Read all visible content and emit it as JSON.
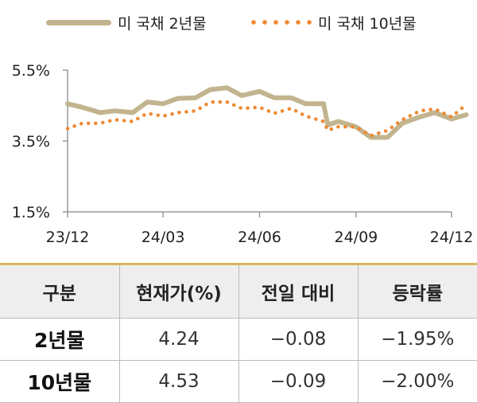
{
  "legend": {
    "items": [
      {
        "label": "미 국채 2년물",
        "style": "solid",
        "color": "#c2b48e"
      },
      {
        "label": "미 국채 10년물",
        "style": "dotted",
        "color": "#ee8a34"
      }
    ]
  },
  "chart_data": {
    "type": "line",
    "xlabel": "",
    "ylabel": "",
    "x_ticks": [
      "23/12",
      "24/03",
      "24/06",
      "24/09",
      "24/12"
    ],
    "x_range": [
      "2023-12-01",
      "2024-12-01"
    ],
    "y_ticks": [
      "5.5%",
      "3.5%",
      "1.5%"
    ],
    "ylim": [
      1.5,
      5.5
    ],
    "grid": false,
    "legend_position": "top",
    "series": [
      {
        "name": "미 국채 2년물",
        "color": "#c2b48e",
        "style": "solid",
        "points": [
          [
            "2023-12-01",
            4.55
          ],
          [
            "2023-12-15",
            4.45
          ],
          [
            "2024-01-01",
            4.3
          ],
          [
            "2024-01-15",
            4.35
          ],
          [
            "2024-02-01",
            4.3
          ],
          [
            "2024-02-15",
            4.6
          ],
          [
            "2024-03-01",
            4.55
          ],
          [
            "2024-03-15",
            4.7
          ],
          [
            "2024-04-01",
            4.72
          ],
          [
            "2024-04-15",
            4.95
          ],
          [
            "2024-05-01",
            5.0
          ],
          [
            "2024-05-15",
            4.78
          ],
          [
            "2024-06-01",
            4.9
          ],
          [
            "2024-06-15",
            4.72
          ],
          [
            "2024-07-01",
            4.72
          ],
          [
            "2024-07-15",
            4.55
          ],
          [
            "2024-08-01",
            4.55
          ],
          [
            "2024-08-05",
            3.95
          ],
          [
            "2024-08-15",
            4.05
          ],
          [
            "2024-09-01",
            3.9
          ],
          [
            "2024-09-15",
            3.6
          ],
          [
            "2024-10-01",
            3.6
          ],
          [
            "2024-10-15",
            4.0
          ],
          [
            "2024-11-01",
            4.18
          ],
          [
            "2024-11-15",
            4.3
          ],
          [
            "2024-12-01",
            4.12
          ],
          [
            "2024-12-15",
            4.24
          ]
        ]
      },
      {
        "name": "미 국채 10년물",
        "color": "#ee8a34",
        "style": "dotted",
        "points": [
          [
            "2023-12-01",
            3.85
          ],
          [
            "2023-12-15",
            4.0
          ],
          [
            "2024-01-01",
            4.0
          ],
          [
            "2024-01-15",
            4.1
          ],
          [
            "2024-02-01",
            4.05
          ],
          [
            "2024-02-15",
            4.28
          ],
          [
            "2024-03-01",
            4.2
          ],
          [
            "2024-03-15",
            4.3
          ],
          [
            "2024-04-01",
            4.35
          ],
          [
            "2024-04-15",
            4.6
          ],
          [
            "2024-05-01",
            4.6
          ],
          [
            "2024-05-15",
            4.42
          ],
          [
            "2024-06-01",
            4.45
          ],
          [
            "2024-06-15",
            4.28
          ],
          [
            "2024-07-01",
            4.42
          ],
          [
            "2024-07-15",
            4.2
          ],
          [
            "2024-08-01",
            4.05
          ],
          [
            "2024-08-05",
            3.8
          ],
          [
            "2024-08-15",
            3.9
          ],
          [
            "2024-09-01",
            3.9
          ],
          [
            "2024-09-15",
            3.65
          ],
          [
            "2024-10-01",
            3.8
          ],
          [
            "2024-10-15",
            4.1
          ],
          [
            "2024-11-01",
            4.35
          ],
          [
            "2024-11-15",
            4.4
          ],
          [
            "2024-12-01",
            4.18
          ],
          [
            "2024-12-15",
            4.53
          ]
        ]
      }
    ]
  },
  "table": {
    "headers": [
      "구분",
      "현재가(%)",
      "전일 대비",
      "등락률"
    ],
    "rows": [
      [
        "2년물",
        "4.24",
        "−0.08",
        "−1.95%"
      ],
      [
        "10년물",
        "4.53",
        "−0.09",
        "−2.00%"
      ]
    ]
  }
}
